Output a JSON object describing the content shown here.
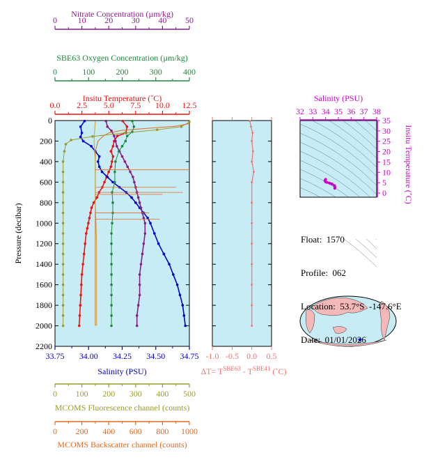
{
  "colors": {
    "nitrate": "#8b1a8b",
    "oxygen": "#1a8a3a",
    "temperature": "#ee1111",
    "salinity": "#0000cc",
    "fluorescence": "#9a9a2a",
    "backscatter": "#e06a20",
    "delta": "#f07070",
    "ts_salinity": "#cc00cc",
    "plot_bg": "#c8ecf6"
  },
  "info": {
    "float_label": "Float:",
    "float_value": "1570",
    "profile_label": "Profile:",
    "profile_value": "062",
    "location_label": "Location:",
    "location_value": "53.7°S  -147.6°E",
    "date_label": "Date:",
    "date_value": "01/01/2026"
  },
  "chart_data": [
    {
      "type": "line",
      "panel": "main-profile",
      "ylabel": "Pressure (decibar)",
      "ylim": [
        0,
        2200
      ],
      "y_ticks": [
        "0",
        "200",
        "400",
        "600",
        "800",
        "1000",
        "1200",
        "1400",
        "1600",
        "1800",
        "2000",
        "2200"
      ],
      "axes": {
        "nitrate": {
          "label": "Nitrate Concentration (µm/kg)",
          "range": [
            0,
            50
          ],
          "ticks": [
            "0",
            "10",
            "20",
            "30",
            "40",
            "50"
          ],
          "position": "top-1"
        },
        "oxygen": {
          "label": "SBE63 Oxygen Concentration (µm/kg)",
          "range": [
            0,
            400
          ],
          "ticks": [
            "0",
            "100",
            "200",
            "300",
            "400"
          ],
          "position": "top-2"
        },
        "temperature": {
          "label": "Insitu Temperature (˚C)",
          "range": [
            0,
            12.5
          ],
          "ticks": [
            "0.0",
            "2.5",
            "5.0",
            "7.5",
            "10.0",
            "12.5"
          ],
          "position": "top-3"
        },
        "salinity": {
          "label": "Salinity (PSU)",
          "range": [
            33.75,
            34.75
          ],
          "ticks": [
            "33.75",
            "34.00",
            "34.25",
            "34.50",
            "34.75"
          ],
          "position": "bottom-1"
        },
        "fluorescence": {
          "label": "MCOMS Fluorescence channel (counts)",
          "range": [
            0,
            500
          ],
          "ticks": [
            "0",
            "100",
            "200",
            "300",
            "400",
            "500"
          ],
          "position": "bottom-2"
        },
        "backscatter": {
          "label": "MCOMS Backscatter channel (counts)",
          "range": [
            0,
            1000
          ],
          "ticks": [
            "0",
            "200",
            "400",
            "600",
            "800",
            "1000"
          ],
          "position": "bottom-3"
        }
      },
      "series": [
        {
          "key": "temperature",
          "points": [
            [
              6.3,
              5
            ],
            [
              6.7,
              60
            ],
            [
              6.6,
              120
            ],
            [
              5.8,
              150
            ],
            [
              5.5,
              200
            ],
            [
              5.4,
              250
            ],
            [
              5.2,
              300
            ],
            [
              5.4,
              350
            ],
            [
              5.3,
              400
            ],
            [
              5.2,
              450
            ],
            [
              5.0,
              500
            ],
            [
              4.8,
              550
            ],
            [
              4.6,
              600
            ],
            [
              4.4,
              650
            ],
            [
              4.1,
              700
            ],
            [
              3.9,
              750
            ],
            [
              3.6,
              800
            ],
            [
              3.4,
              850
            ],
            [
              3.3,
              900
            ],
            [
              3.2,
              950
            ],
            [
              3.1,
              1000
            ],
            [
              3.0,
              1050
            ],
            [
              2.9,
              1100
            ],
            [
              2.8,
              1200
            ],
            [
              2.7,
              1300
            ],
            [
              2.6,
              1400
            ],
            [
              2.5,
              1500
            ],
            [
              2.45,
              1600
            ],
            [
              2.4,
              1700
            ],
            [
              2.35,
              1800
            ],
            [
              2.3,
              1900
            ],
            [
              2.25,
              2000
            ]
          ]
        },
        {
          "key": "salinity",
          "points": [
            [
              33.97,
              5
            ],
            [
              33.94,
              60
            ],
            [
              33.95,
              120
            ],
            [
              33.94,
              160
            ],
            [
              33.96,
              200
            ],
            [
              34.02,
              250
            ],
            [
              34.05,
              300
            ],
            [
              34.08,
              350
            ],
            [
              34.07,
              400
            ],
            [
              34.08,
              450
            ],
            [
              34.1,
              500
            ],
            [
              34.14,
              550
            ],
            [
              34.18,
              600
            ],
            [
              34.23,
              650
            ],
            [
              34.28,
              700
            ],
            [
              34.32,
              750
            ],
            [
              34.35,
              800
            ],
            [
              34.38,
              850
            ],
            [
              34.41,
              900
            ],
            [
              34.44,
              950
            ],
            [
              34.46,
              1000
            ],
            [
              34.49,
              1100
            ],
            [
              34.52,
              1200
            ],
            [
              34.56,
              1300
            ],
            [
              34.6,
              1400
            ],
            [
              34.63,
              1500
            ],
            [
              34.66,
              1600
            ],
            [
              34.68,
              1700
            ],
            [
              34.7,
              1800
            ],
            [
              34.71,
              1900
            ],
            [
              34.72,
              2000
            ]
          ]
        },
        {
          "key": "nitrate",
          "points": [
            [
              19,
              5
            ],
            [
              19.5,
              60
            ],
            [
              21,
              100
            ],
            [
              22,
              150
            ],
            [
              22.5,
              200
            ],
            [
              23,
              250
            ],
            [
              24,
              300
            ],
            [
              25,
              350
            ],
            [
              26,
              400
            ],
            [
              27,
              450
            ],
            [
              28,
              500
            ],
            [
              29,
              550
            ],
            [
              29.5,
              600
            ],
            [
              30,
              650
            ],
            [
              30.5,
              700
            ],
            [
              31,
              750
            ],
            [
              31.5,
              800
            ],
            [
              32,
              850
            ],
            [
              32.5,
              900
            ],
            [
              33,
              950
            ],
            [
              33.5,
              1000
            ],
            [
              33.5,
              1100
            ],
            [
              33,
              1200
            ],
            [
              32.5,
              1300
            ],
            [
              32,
              1400
            ],
            [
              31.5,
              1500
            ],
            [
              31.5,
              1600
            ],
            [
              31.5,
              1700
            ],
            [
              31,
              1800
            ],
            [
              30.5,
              1900
            ],
            [
              30.5,
              2000
            ]
          ]
        },
        {
          "key": "oxygen",
          "points": [
            [
              230,
              5
            ],
            [
              235,
              60
            ],
            [
              230,
              110
            ],
            [
              215,
              150
            ],
            [
              210,
              200
            ],
            [
              200,
              250
            ],
            [
              190,
              300
            ],
            [
              180,
              400
            ],
            [
              178,
              500
            ],
            [
              178,
              600
            ],
            [
              170,
              700
            ],
            [
              172,
              800
            ],
            [
              172,
              900
            ],
            [
              170,
              1000
            ],
            [
              168,
              1100
            ],
            [
              168,
              1200
            ],
            [
              168,
              1300
            ],
            [
              168,
              1400
            ],
            [
              168,
              1500
            ],
            [
              168,
              1600
            ],
            [
              168,
              1700
            ],
            [
              168,
              1800
            ],
            [
              168,
              1900
            ],
            [
              168,
              2000
            ]
          ]
        },
        {
          "key": "fluorescence",
          "points": [
            [
              500,
              15
            ],
            [
              470,
              60
            ],
            [
              380,
              90
            ],
            [
              260,
              120
            ],
            [
              140,
              155
            ],
            [
              60,
              190
            ],
            [
              40,
              230
            ],
            [
              35,
              300
            ],
            [
              30,
              400
            ],
            [
              30,
              500
            ],
            [
              30,
              600
            ],
            [
              30,
              700
            ],
            [
              30,
              800
            ],
            [
              30,
              900
            ],
            [
              30,
              1000
            ],
            [
              30,
              1100
            ],
            [
              30,
              1200
            ],
            [
              30,
              1300
            ],
            [
              30,
              1400
            ],
            [
              30,
              1500
            ],
            [
              30,
              1600
            ],
            [
              30,
              1700
            ],
            [
              30,
              1800
            ],
            [
              30,
              1900
            ],
            [
              30,
              2000
            ]
          ]
        },
        {
          "key": "backscatter",
          "points": [
            [
              1000,
              30
            ],
            [
              900,
              55
            ],
            [
              700,
              75
            ],
            [
              500,
              95
            ],
            [
              400,
              120
            ],
            [
              360,
              150
            ],
            [
              320,
              200
            ],
            [
              300,
              300
            ],
            [
              300,
              400
            ],
            [
              300,
              500
            ],
            [
              300,
              600
            ],
            [
              300,
              700
            ],
            [
              300,
              800
            ],
            [
              300,
              900
            ],
            [
              300,
              1000
            ],
            [
              300,
              1100
            ],
            [
              300,
              1200
            ],
            [
              300,
              1300
            ],
            [
              300,
              1400
            ],
            [
              300,
              1500
            ],
            [
              300,
              1600
            ],
            [
              300,
              1700
            ],
            [
              300,
              1800
            ],
            [
              300,
              1900
            ],
            [
              300,
              2000
            ]
          ]
        },
        {
          "key": "sal-secondary",
          "points": [
            [
              34.05,
              5
            ],
            [
              34.04,
              200
            ],
            [
              34.05,
              400
            ],
            [
              34.05,
              800
            ],
            [
              34.06,
              1200
            ],
            [
              34.06,
              2000
            ]
          ]
        }
      ]
    },
    {
      "type": "line",
      "panel": "delta-t",
      "xlabel_main": "ΔT= T",
      "xlabel_sup1": "SBE63",
      "xlabel_mid": " - T",
      "xlabel_sup2": "SBE41",
      "xlabel_unit": " (˚C)",
      "xlim": [
        -1.0,
        0.5
      ],
      "ylim": [
        0,
        2200
      ],
      "ticks": [
        "-1.0",
        "-0.5",
        "0.0",
        "0.5"
      ],
      "points": [
        [
          -0.05,
          5
        ],
        [
          -0.02,
          60
        ],
        [
          0.02,
          120
        ],
        [
          0.0,
          200
        ],
        [
          0.03,
          300
        ],
        [
          0.0,
          400
        ],
        [
          0.05,
          500
        ],
        [
          0.0,
          600
        ],
        [
          0.0,
          800
        ],
        [
          0.0,
          1000
        ],
        [
          0.0,
          1200
        ],
        [
          0.0,
          1400
        ],
        [
          0.0,
          1600
        ],
        [
          0.0,
          1800
        ],
        [
          0.0,
          2000
        ]
      ]
    },
    {
      "type": "scatter",
      "panel": "ts-diagram",
      "xlabel": "Salinity (PSU)",
      "ylabel": "Insitu Temperature (˚C)",
      "xlim": [
        32,
        38
      ],
      "ylim": [
        -2,
        35
      ],
      "x_ticks": [
        "32",
        "33",
        "34",
        "35",
        "36",
        "37",
        "38"
      ],
      "y_ticks": [
        "0",
        "5",
        "10",
        "15",
        "20",
        "25",
        "30",
        "35"
      ],
      "points": [
        [
          34.0,
          6.6
        ],
        [
          33.95,
          6.0
        ],
        [
          34.0,
          5.4
        ],
        [
          34.1,
          5.2
        ],
        [
          34.3,
          4.8
        ],
        [
          34.5,
          4.4
        ],
        [
          34.7,
          3.6
        ],
        [
          34.72,
          3.0
        ],
        [
          34.73,
          2.5
        ],
        [
          34.72,
          2.3
        ]
      ]
    }
  ]
}
